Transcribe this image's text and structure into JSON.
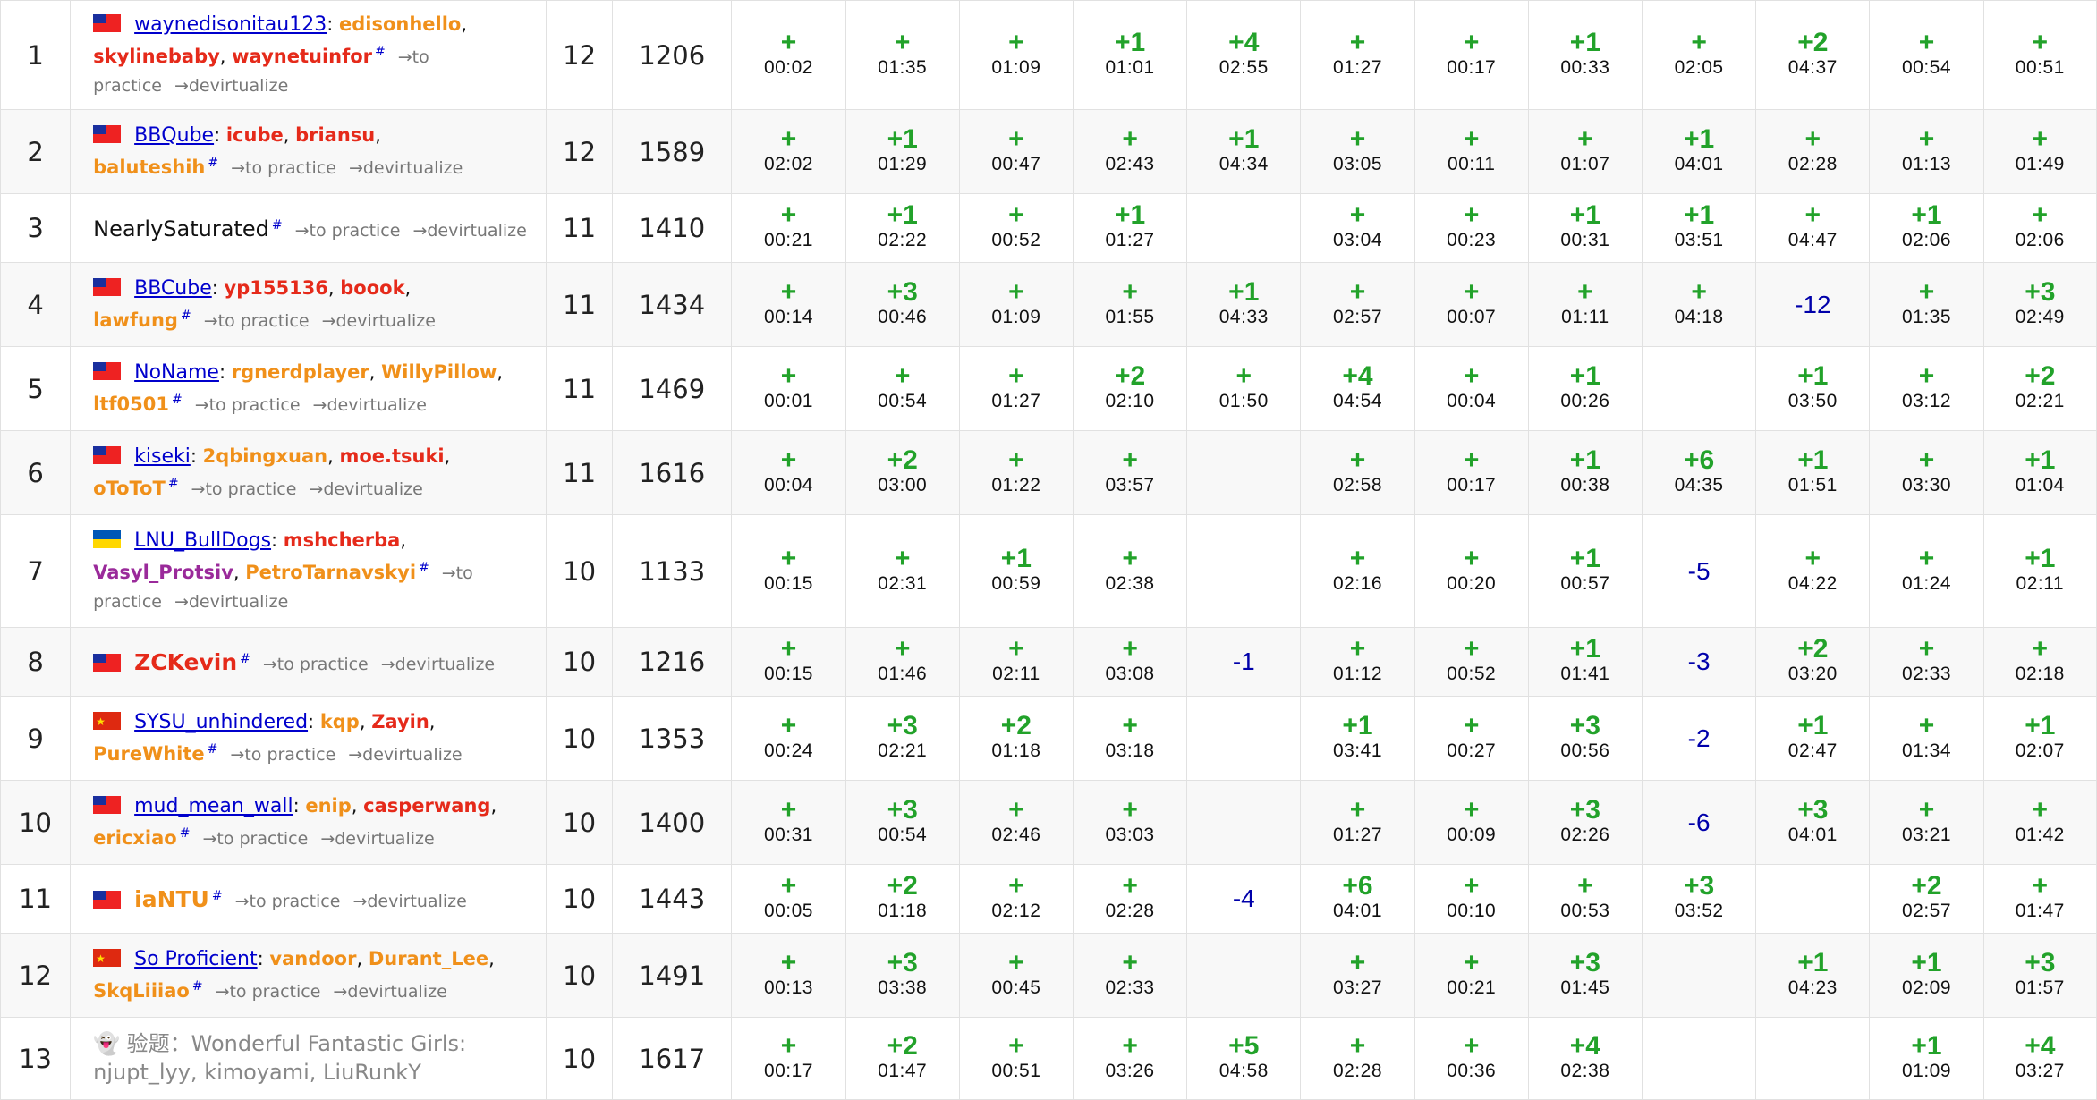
{
  "hash_symbol": "#",
  "links": {
    "practice": "→to practice",
    "devirtualize": "→devirtualize"
  },
  "colors": {
    "accepted": "#22a22a",
    "rejected": "#0000aa",
    "red_user": "#e52a1a",
    "orange_user": "#f0901a",
    "purple_user": "#9a2a9a",
    "team_link": "#0000cc"
  },
  "rows": [
    {
      "rank": "1",
      "solved": "12",
      "penalty": "1206",
      "flag": "tw",
      "team": {
        "name": "waynedisonitau123",
        "style": "link"
      },
      "members": [
        {
          "name": "edisonhello",
          "color": "orange"
        },
        {
          "name": "skylinebaby",
          "color": "red"
        },
        {
          "name": "waynetuinfor",
          "color": "red"
        }
      ],
      "problems": [
        [
          "+",
          "00:02"
        ],
        [
          "+",
          "01:35"
        ],
        [
          "+",
          "01:09"
        ],
        [
          "+1",
          "01:01"
        ],
        [
          "+4",
          "02:55"
        ],
        [
          "+",
          "01:27"
        ],
        [
          "+",
          "00:17"
        ],
        [
          "+1",
          "00:33"
        ],
        [
          "+",
          "02:05"
        ],
        [
          "+2",
          "04:37"
        ],
        [
          "+",
          "00:54"
        ],
        [
          "+",
          "00:51"
        ]
      ]
    },
    {
      "rank": "2",
      "solved": "12",
      "penalty": "1589",
      "flag": "tw",
      "team": {
        "name": "BBQube",
        "style": "link"
      },
      "members": [
        {
          "name": "icube",
          "color": "red"
        },
        {
          "name": "briansu",
          "color": "red"
        },
        {
          "name": "baluteshih",
          "color": "orange"
        }
      ],
      "problems": [
        [
          "+",
          "02:02"
        ],
        [
          "+1",
          "01:29"
        ],
        [
          "+",
          "00:47"
        ],
        [
          "+",
          "02:43"
        ],
        [
          "+1",
          "04:34"
        ],
        [
          "+",
          "03:05"
        ],
        [
          "+",
          "00:11"
        ],
        [
          "+",
          "01:07"
        ],
        [
          "+1",
          "04:01"
        ],
        [
          "+",
          "02:28"
        ],
        [
          "+",
          "01:13"
        ],
        [
          "+",
          "01:49"
        ]
      ]
    },
    {
      "rank": "3",
      "solved": "11",
      "penalty": "1410",
      "flag": "",
      "team": {
        "name": "NearlySaturated",
        "style": "plain"
      },
      "members": [],
      "problems": [
        [
          "+",
          "00:21"
        ],
        [
          "+1",
          "02:22"
        ],
        [
          "+",
          "00:52"
        ],
        [
          "+1",
          "01:27"
        ],
        [
          "",
          ""
        ],
        [
          "+",
          "03:04"
        ],
        [
          "+",
          "00:23"
        ],
        [
          "+1",
          "00:31"
        ],
        [
          "+1",
          "03:51"
        ],
        [
          "+",
          "04:47"
        ],
        [
          "+1",
          "02:06"
        ],
        [
          "+",
          "02:06"
        ]
      ]
    },
    {
      "rank": "4",
      "solved": "11",
      "penalty": "1434",
      "flag": "tw",
      "team": {
        "name": "BBCube",
        "style": "link"
      },
      "members": [
        {
          "name": "yp155136",
          "color": "red"
        },
        {
          "name": "boook",
          "color": "red"
        },
        {
          "name": "lawfung",
          "color": "orange"
        }
      ],
      "problems": [
        [
          "+",
          "00:14"
        ],
        [
          "+3",
          "00:46"
        ],
        [
          "+",
          "01:09"
        ],
        [
          "+",
          "01:55"
        ],
        [
          "+1",
          "04:33"
        ],
        [
          "+",
          "02:57"
        ],
        [
          "+",
          "00:07"
        ],
        [
          "+",
          "01:11"
        ],
        [
          "+",
          "04:18"
        ],
        [
          "-12",
          ""
        ],
        [
          "+",
          "01:35"
        ],
        [
          "+3",
          "02:49"
        ]
      ]
    },
    {
      "rank": "5",
      "solved": "11",
      "penalty": "1469",
      "flag": "tw",
      "team": {
        "name": "NoName",
        "style": "link"
      },
      "members": [
        {
          "name": "rgnerdplayer",
          "color": "orange"
        },
        {
          "name": "WillyPillow",
          "color": "orange"
        },
        {
          "name": "ltf0501",
          "color": "orange"
        }
      ],
      "problems": [
        [
          "+",
          "00:01"
        ],
        [
          "+",
          "00:54"
        ],
        [
          "+",
          "01:27"
        ],
        [
          "+2",
          "02:10"
        ],
        [
          "+",
          "01:50"
        ],
        [
          "+4",
          "04:54"
        ],
        [
          "+",
          "00:04"
        ],
        [
          "+1",
          "00:26"
        ],
        [
          "",
          ""
        ],
        [
          "+1",
          "03:50"
        ],
        [
          "+",
          "03:12"
        ],
        [
          "+2",
          "02:21"
        ]
      ]
    },
    {
      "rank": "6",
      "solved": "11",
      "penalty": "1616",
      "flag": "tw",
      "team": {
        "name": "kiseki",
        "style": "link"
      },
      "members": [
        {
          "name": "2qbingxuan",
          "color": "orange"
        },
        {
          "name": "moe.tsuki",
          "color": "red"
        },
        {
          "name": "oToToT",
          "color": "orange"
        }
      ],
      "problems": [
        [
          "+",
          "00:04"
        ],
        [
          "+2",
          "03:00"
        ],
        [
          "+",
          "01:22"
        ],
        [
          "+",
          "03:57"
        ],
        [
          "",
          ""
        ],
        [
          "+",
          "02:58"
        ],
        [
          "+",
          "00:17"
        ],
        [
          "+1",
          "00:38"
        ],
        [
          "+6",
          "04:35"
        ],
        [
          "+1",
          "01:51"
        ],
        [
          "+",
          "03:30"
        ],
        [
          "+1",
          "01:04"
        ]
      ]
    },
    {
      "rank": "7",
      "solved": "10",
      "penalty": "1133",
      "flag": "ua",
      "team": {
        "name": "LNU_BullDogs",
        "style": "link"
      },
      "members": [
        {
          "name": "mshcherba",
          "color": "red"
        },
        {
          "name": "Vasyl_Protsiv",
          "color": "purple"
        },
        {
          "name": "PetroTarnavskyi",
          "color": "orange"
        }
      ],
      "problems": [
        [
          "+",
          "00:15"
        ],
        [
          "+",
          "02:31"
        ],
        [
          "+1",
          "00:59"
        ],
        [
          "+",
          "02:38"
        ],
        [
          "",
          ""
        ],
        [
          "+",
          "02:16"
        ],
        [
          "+",
          "00:20"
        ],
        [
          "+1",
          "00:57"
        ],
        [
          "-5",
          ""
        ],
        [
          "+",
          "04:22"
        ],
        [
          "+",
          "01:24"
        ],
        [
          "+1",
          "02:11"
        ]
      ]
    },
    {
      "rank": "8",
      "solved": "10",
      "penalty": "1216",
      "flag": "tw",
      "team": {
        "name": "ZCKevin",
        "style": "red"
      },
      "members": [],
      "problems": [
        [
          "+",
          "00:15"
        ],
        [
          "+",
          "01:46"
        ],
        [
          "+",
          "02:11"
        ],
        [
          "+",
          "03:08"
        ],
        [
          "-1",
          ""
        ],
        [
          "+",
          "01:12"
        ],
        [
          "+",
          "00:52"
        ],
        [
          "+1",
          "01:41"
        ],
        [
          "-3",
          ""
        ],
        [
          "+2",
          "03:20"
        ],
        [
          "+",
          "02:33"
        ],
        [
          "+",
          "02:18"
        ]
      ]
    },
    {
      "rank": "9",
      "solved": "10",
      "penalty": "1353",
      "flag": "cn",
      "team": {
        "name": "SYSU_unhindered",
        "style": "link"
      },
      "members": [
        {
          "name": "kqp",
          "color": "orange"
        },
        {
          "name": "Zayin",
          "color": "red"
        },
        {
          "name": "PureWhite",
          "color": "orange"
        }
      ],
      "problems": [
        [
          "+",
          "00:24"
        ],
        [
          "+3",
          "02:21"
        ],
        [
          "+2",
          "01:18"
        ],
        [
          "+",
          "03:18"
        ],
        [
          "",
          ""
        ],
        [
          "+1",
          "03:41"
        ],
        [
          "+",
          "00:27"
        ],
        [
          "+3",
          "00:56"
        ],
        [
          "-2",
          ""
        ],
        [
          "+1",
          "02:47"
        ],
        [
          "+",
          "01:34"
        ],
        [
          "+1",
          "02:07"
        ]
      ]
    },
    {
      "rank": "10",
      "solved": "10",
      "penalty": "1400",
      "flag": "tw",
      "team": {
        "name": "mud_mean_wall",
        "style": "link"
      },
      "members": [
        {
          "name": "enip",
          "color": "orange"
        },
        {
          "name": "casperwang",
          "color": "red"
        },
        {
          "name": "ericxiao",
          "color": "orange"
        }
      ],
      "problems": [
        [
          "+",
          "00:31"
        ],
        [
          "+3",
          "00:54"
        ],
        [
          "+",
          "02:46"
        ],
        [
          "+",
          "03:03"
        ],
        [
          "",
          ""
        ],
        [
          "+",
          "01:27"
        ],
        [
          "+",
          "00:09"
        ],
        [
          "+3",
          "02:26"
        ],
        [
          "-6",
          ""
        ],
        [
          "+3",
          "04:01"
        ],
        [
          "+",
          "03:21"
        ],
        [
          "+",
          "01:42"
        ]
      ]
    },
    {
      "rank": "11",
      "solved": "10",
      "penalty": "1443",
      "flag": "tw",
      "team": {
        "name": "iaNTU",
        "style": "orange"
      },
      "members": [],
      "problems": [
        [
          "+",
          "00:05"
        ],
        [
          "+2",
          "01:18"
        ],
        [
          "+",
          "02:12"
        ],
        [
          "+",
          "02:28"
        ],
        [
          "-4",
          ""
        ],
        [
          "+6",
          "04:01"
        ],
        [
          "+",
          "00:10"
        ],
        [
          "+",
          "00:53"
        ],
        [
          "+3",
          "03:52"
        ],
        [
          "",
          ""
        ],
        [
          "+2",
          "02:57"
        ],
        [
          "+",
          "01:47"
        ]
      ]
    },
    {
      "rank": "12",
      "solved": "10",
      "penalty": "1491",
      "flag": "cn",
      "team": {
        "name": "So Proficient",
        "style": "link"
      },
      "members": [
        {
          "name": "vandoor",
          "color": "orange"
        },
        {
          "name": "Durant_Lee",
          "color": "orange"
        },
        {
          "name": "SkqLiiiao",
          "color": "orange"
        }
      ],
      "problems": [
        [
          "+",
          "00:13"
        ],
        [
          "+3",
          "03:38"
        ],
        [
          "+",
          "00:45"
        ],
        [
          "+",
          "02:33"
        ],
        [
          "",
          ""
        ],
        [
          "+",
          "03:27"
        ],
        [
          "+",
          "00:21"
        ],
        [
          "+3",
          "01:45"
        ],
        [
          "",
          ""
        ],
        [
          "+1",
          "04:23"
        ],
        [
          "+1",
          "02:09"
        ],
        [
          "+3",
          "01:57"
        ]
      ]
    },
    {
      "rank": "13",
      "solved": "10",
      "penalty": "1617",
      "flag": "",
      "virtual_text": "👻 验题：Wonderful Fantastic Girls: njupt_lyy, kimoyami, LiuRunkY",
      "problems": [
        [
          "+",
          "00:17"
        ],
        [
          "+2",
          "01:47"
        ],
        [
          "+",
          "00:51"
        ],
        [
          "+",
          "03:26"
        ],
        [
          "+5",
          "04:58"
        ],
        [
          "+",
          "02:28"
        ],
        [
          "+",
          "00:36"
        ],
        [
          "+4",
          "02:38"
        ],
        [
          "",
          ""
        ],
        [
          "",
          ""
        ],
        [
          "+1",
          "01:09"
        ],
        [
          "+4",
          "03:27"
        ]
      ]
    }
  ]
}
